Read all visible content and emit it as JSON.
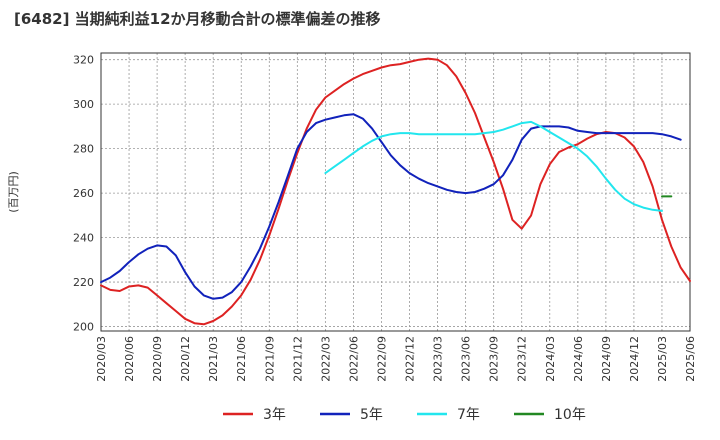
{
  "title": "[6482]  当期純利益12か月移動合計の標準偏差の推移",
  "chart_data": {
    "type": "line",
    "title": "[6482]  当期純利益12か月移動合計の標準偏差の推移",
    "ylabel": "(百万円)",
    "xlabel": "",
    "ylim": [
      198,
      323
    ],
    "yticks": [
      200,
      220,
      240,
      260,
      280,
      300,
      320
    ],
    "x_tick_labels": [
      "2020/03",
      "2020/06",
      "2020/09",
      "2020/12",
      "2021/03",
      "2021/06",
      "2021/09",
      "2021/12",
      "2022/03",
      "2022/06",
      "2022/09",
      "2022/12",
      "2023/03",
      "2023/06",
      "2023/09",
      "2023/12",
      "2024/03",
      "2024/06",
      "2024/09",
      "2024/12",
      "2025/03",
      "2025/06"
    ],
    "grid": true,
    "legend_position": "bottom",
    "series": [
      {
        "name": "3年",
        "color": "#dd2222",
        "start": "2020/03",
        "values": [
          218.5,
          216.5,
          216,
          218,
          218.5,
          217.5,
          214,
          210.5,
          207,
          203.5,
          201.5,
          201,
          202.5,
          205,
          209,
          214,
          221,
          230,
          241,
          253,
          266,
          278,
          289,
          297.5,
          303,
          306,
          309,
          311.5,
          313.5,
          315,
          316.5,
          317.5,
          318,
          319,
          320,
          320.5,
          320,
          317.5,
          312.5,
          305,
          296,
          285,
          274,
          262,
          248,
          244,
          250,
          264,
          273,
          278.5,
          280.5,
          282,
          284.5,
          286.5,
          287.5,
          287,
          285,
          281,
          274,
          263,
          248,
          236,
          226.5,
          220.5
        ]
      },
      {
        "name": "5年",
        "color": "#1122bb",
        "start": "2020/03",
        "values": [
          220,
          222,
          225,
          229,
          232.5,
          235,
          236.5,
          236,
          232,
          224.5,
          218,
          214,
          212.5,
          213,
          215.5,
          220,
          227,
          235,
          245,
          256,
          268,
          280,
          287.5,
          291.5,
          293,
          294,
          295,
          295.5,
          293.5,
          289,
          283,
          277,
          272.5,
          269,
          266.5,
          264.5,
          263,
          261.5,
          260.5,
          260,
          260.5,
          262,
          264,
          268,
          275,
          284,
          289,
          290,
          290,
          290,
          289.5,
          288,
          287.5,
          287,
          287,
          287,
          287,
          287,
          287,
          287,
          286.5,
          285.5,
          284
        ]
      },
      {
        "name": "7年",
        "color": "#22e6ee",
        "start": "2022/03",
        "values": [
          269,
          272,
          275,
          278,
          281,
          283.5,
          285.5,
          286.5,
          287,
          287,
          286.5,
          286.5,
          286.5,
          286.5,
          286.5,
          286.5,
          286.5,
          287,
          287.5,
          288.5,
          290,
          291.5,
          292,
          290,
          287.5,
          285,
          282.5,
          280,
          276.5,
          272,
          266.5,
          261.5,
          257.5,
          255,
          253.5,
          252.5,
          252
        ]
      },
      {
        "name": "10年",
        "color": "#228822",
        "start": "2025/03",
        "values": [
          258.5,
          258.5
        ]
      }
    ]
  }
}
